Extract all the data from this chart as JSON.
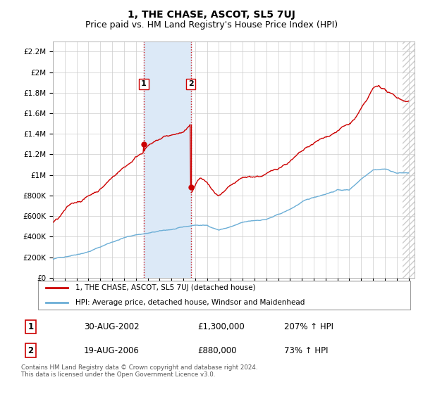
{
  "title": "1, THE CHASE, ASCOT, SL5 7UJ",
  "subtitle": "Price paid vs. HM Land Registry's House Price Index (HPI)",
  "ylim": [
    0,
    2300000
  ],
  "yticks": [
    0,
    200000,
    400000,
    600000,
    800000,
    1000000,
    1200000,
    1400000,
    1600000,
    1800000,
    2000000,
    2200000
  ],
  "ytick_labels": [
    "£0",
    "£200K",
    "£400K",
    "£600K",
    "£800K",
    "£1M",
    "£1.2M",
    "£1.4M",
    "£1.6M",
    "£1.8M",
    "£2M",
    "£2.2M"
  ],
  "hpi_color": "#6baed6",
  "price_color": "#cc0000",
  "sale1_year": 2002.67,
  "sale1_price": 1300000,
  "sale1_label": "1",
  "sale2_year": 2006.64,
  "sale2_price": 880000,
  "sale2_label": "2",
  "shade_color": "#dce9f7",
  "vline_color": "#cc0000",
  "hatch_color": "#cccccc",
  "legend_line1": "1, THE CHASE, ASCOT, SL5 7UJ (detached house)",
  "legend_line2": "HPI: Average price, detached house, Windsor and Maidenhead",
  "table_row1_num": "1",
  "table_row1_date": "30-AUG-2002",
  "table_row1_price": "£1,300,000",
  "table_row1_hpi": "207% ↑ HPI",
  "table_row2_num": "2",
  "table_row2_date": "19-AUG-2006",
  "table_row2_price": "£880,000",
  "table_row2_hpi": "73% ↑ HPI",
  "footer": "Contains HM Land Registry data © Crown copyright and database right 2024.\nThis data is licensed under the Open Government Licence v3.0.",
  "title_fontsize": 10,
  "subtitle_fontsize": 9,
  "xmin": 1995,
  "xmax": 2025.5
}
